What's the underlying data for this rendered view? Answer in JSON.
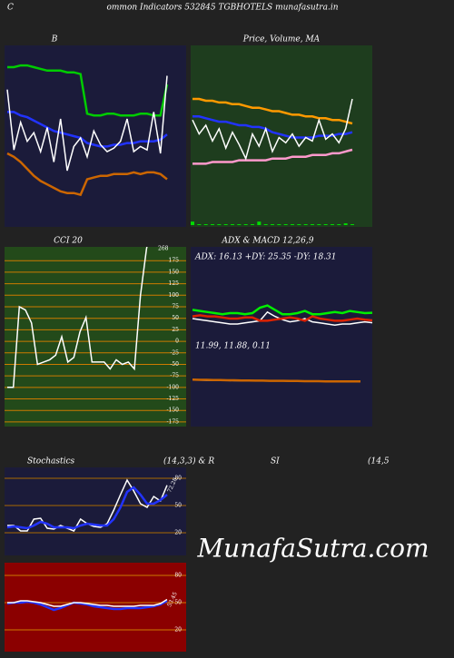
{
  "header": {
    "left": "C",
    "title": "ommon  Indicators 532845 TGBHOTELS munafasutra.in",
    "stoch_title": "Stochastics",
    "stoch_params": "(14,3,3) & R",
    "rsi_title": "SI",
    "rsi_params": "(14,5"
  },
  "watermark": "MunafaSutra.com",
  "chart_data": [
    {
      "type": "line",
      "title": "B",
      "background": "#1b1b3a",
      "ylim": [
        0,
        100
      ],
      "series": [
        {
          "color": "#00cc00",
          "values": [
            90,
            90,
            91,
            91,
            90,
            89,
            88,
            88,
            88,
            87,
            87,
            86,
            63,
            62,
            62,
            63,
            63,
            62,
            62,
            62,
            63,
            63,
            62,
            62,
            80
          ]
        },
        {
          "color": "#2233ff",
          "values": [
            64,
            64,
            62,
            61,
            59,
            57,
            55,
            53,
            52,
            51,
            50,
            49,
            46,
            45,
            44,
            44,
            45,
            45,
            46,
            46,
            47,
            47,
            47,
            48,
            51
          ]
        },
        {
          "color": "#cc6600",
          "values": [
            40,
            38,
            35,
            31,
            27,
            24,
            22,
            20,
            18,
            17,
            17,
            16,
            25,
            26,
            27,
            27,
            28,
            28,
            28,
            29,
            28,
            29,
            29,
            28,
            25
          ]
        },
        {
          "color": "#ffffff",
          "values": [
            77,
            42,
            58,
            47,
            52,
            41,
            55,
            35,
            60,
            30,
            44,
            49,
            38,
            53,
            45,
            41,
            43,
            47,
            60,
            41,
            44,
            42,
            64,
            40,
            85
          ]
        }
      ]
    },
    {
      "type": "line",
      "title": "Price,  Volume, MA",
      "background": "#1e3d1e",
      "ylim": [
        0,
        100
      ],
      "series": [
        {
          "color": "#ff9900",
          "values": [
            72,
            72,
            71,
            71,
            70,
            70,
            69,
            69,
            68,
            67,
            67,
            66,
            65,
            65,
            64,
            63,
            63,
            62,
            62,
            61,
            61,
            60,
            60,
            59,
            58
          ]
        },
        {
          "color": "#2233ff",
          "values": [
            62,
            62,
            61,
            60,
            59,
            59,
            58,
            57,
            57,
            56,
            56,
            55,
            53,
            52,
            51,
            50,
            50,
            50,
            50,
            51,
            51,
            51,
            52,
            52,
            53
          ]
        },
        {
          "color": "#ff99cc",
          "values": [
            35,
            35,
            35,
            36,
            36,
            36,
            36,
            37,
            37,
            37,
            37,
            37,
            38,
            38,
            38,
            39,
            39,
            39,
            40,
            40,
            40,
            41,
            41,
            42,
            43
          ]
        },
        {
          "color": "#ffffff",
          "values": [
            60,
            52,
            57,
            48,
            55,
            44,
            53,
            46,
            38,
            52,
            45,
            55,
            42,
            50,
            47,
            52,
            45,
            50,
            48,
            60,
            49,
            52,
            47,
            55,
            72
          ]
        },
        {
          "color": "#00dd00",
          "style": "bar",
          "values": [
            2,
            0.5,
            0.5,
            0.5,
            0.5,
            0.5,
            0.5,
            0.5,
            0.5,
            0.5,
            2,
            0.5,
            0.5,
            0.5,
            0.5,
            0.5,
            0.5,
            0.5,
            0.5,
            0.5,
            0.5,
            0.5,
            0.5,
            1,
            0.5
          ]
        }
      ]
    },
    {
      "type": "line",
      "title": "CCI 20",
      "background": "#234a1a",
      "ylim": [
        -185,
        205
      ],
      "grid_color": "#cc7a00",
      "yticks": [
        175,
        150,
        125,
        100,
        75,
        50,
        25,
        0,
        -25,
        -50,
        -75,
        -100,
        -125,
        -150,
        -175
      ],
      "last_label": true,
      "series": [
        {
          "color": "#ffffff",
          "values": [
            -100,
            -100,
            75,
            68,
            40,
            -50,
            -45,
            -40,
            -30,
            10,
            -45,
            -35,
            20,
            52,
            -45,
            -45,
            -45,
            -60,
            -40,
            -50,
            -45,
            -60,
            100,
            200,
            268
          ]
        }
      ]
    },
    {
      "type": "line",
      "title": "ADX  & MACD 12,26,9",
      "background": "#1b1b3a",
      "ylim": [
        0,
        50
      ],
      "label": "ADX: 16.13  +DY: 25.35  -DY: 18.31",
      "series": [
        {
          "color": "#ffffff",
          "values": [
            20,
            19,
            18,
            17,
            16,
            15,
            15,
            16,
            17,
            18,
            26,
            22,
            19,
            17,
            18,
            20,
            17,
            16,
            15,
            14,
            15,
            15,
            16,
            17,
            16.13
          ]
        },
        {
          "color": "#00ee00",
          "values": [
            28,
            27,
            26,
            25,
            24,
            25,
            25,
            24,
            25,
            30,
            32,
            28,
            24,
            24,
            25,
            27,
            24,
            24,
            25,
            26,
            25,
            27,
            26,
            25,
            25.35
          ]
        },
        {
          "color": "#dd2200",
          "values": [
            22,
            23,
            22,
            22,
            21,
            20,
            20,
            21,
            21,
            18,
            18,
            19,
            20,
            21,
            20,
            18,
            22,
            20,
            19,
            18,
            18,
            19,
            20,
            19,
            18.31
          ]
        }
      ]
    },
    {
      "type": "line",
      "label": "11.99,  11.88,  0.11",
      "ylim": [
        0,
        24
      ],
      "series": [
        {
          "color": "#ffffff",
          "values": [
            12.6,
            12.6,
            12.5,
            12.5,
            12.4,
            12.4,
            12.3,
            12.3,
            12.3,
            12.2,
            12.2,
            12.1,
            12.1,
            12.1,
            12,
            12,
            12,
            12,
            11.9,
            11.9,
            11.9,
            11.9,
            11.9,
            11.9,
            11.99
          ]
        },
        {
          "color": "#cc6600",
          "values": [
            12.8,
            12.7,
            12.7,
            12.6,
            12.6,
            12.5,
            12.5,
            12.4,
            12.4,
            12.3,
            12.3,
            12.2,
            12.2,
            12.2,
            12.1,
            12.1,
            12,
            12,
            12,
            11.9,
            11.9,
            11.9,
            11.9,
            11.9,
            11.88
          ]
        }
      ]
    },
    {
      "type": "line",
      "background": "#1b1b3a",
      "ylim": [
        -5,
        92
      ],
      "grid_color": "#aa6a00",
      "yticks": [
        80,
        50,
        20
      ],
      "last_label": true,
      "series": [
        {
          "color": "#ffffff",
          "values": [
            28,
            28,
            22,
            22,
            35,
            36,
            25,
            24,
            28,
            25,
            22,
            35,
            30,
            27,
            26,
            30,
            45,
            62,
            78,
            66,
            52,
            48,
            60,
            55,
            72.28
          ]
        },
        {
          "color": "#2233ff",
          "values": [
            26,
            27,
            26,
            25,
            28,
            32,
            30,
            26,
            26,
            26,
            25,
            28,
            30,
            29,
            28,
            28,
            35,
            48,
            65,
            70,
            62,
            52,
            52,
            56,
            62
          ]
        }
      ]
    },
    {
      "type": "line",
      "background": "#8b0000",
      "ylim": [
        -4,
        94
      ],
      "grid_color": "#cc7a00",
      "yticks": [
        80,
        50,
        20
      ],
      "last_label": true,
      "series": [
        {
          "color": "#2233ff",
          "values": [
            49,
            50,
            50,
            51,
            50,
            48,
            45,
            42,
            44,
            47,
            50,
            49,
            48,
            46,
            45,
            44,
            43,
            43,
            44,
            44,
            44,
            45,
            46,
            48,
            52
          ]
        },
        {
          "color": "#ffffff",
          "values": [
            50,
            50,
            52,
            52,
            51,
            50,
            48,
            46,
            46,
            48,
            50,
            50,
            49,
            48,
            47,
            47,
            46,
            46,
            46,
            46,
            47,
            47,
            47,
            49,
            53.45
          ]
        }
      ]
    }
  ]
}
